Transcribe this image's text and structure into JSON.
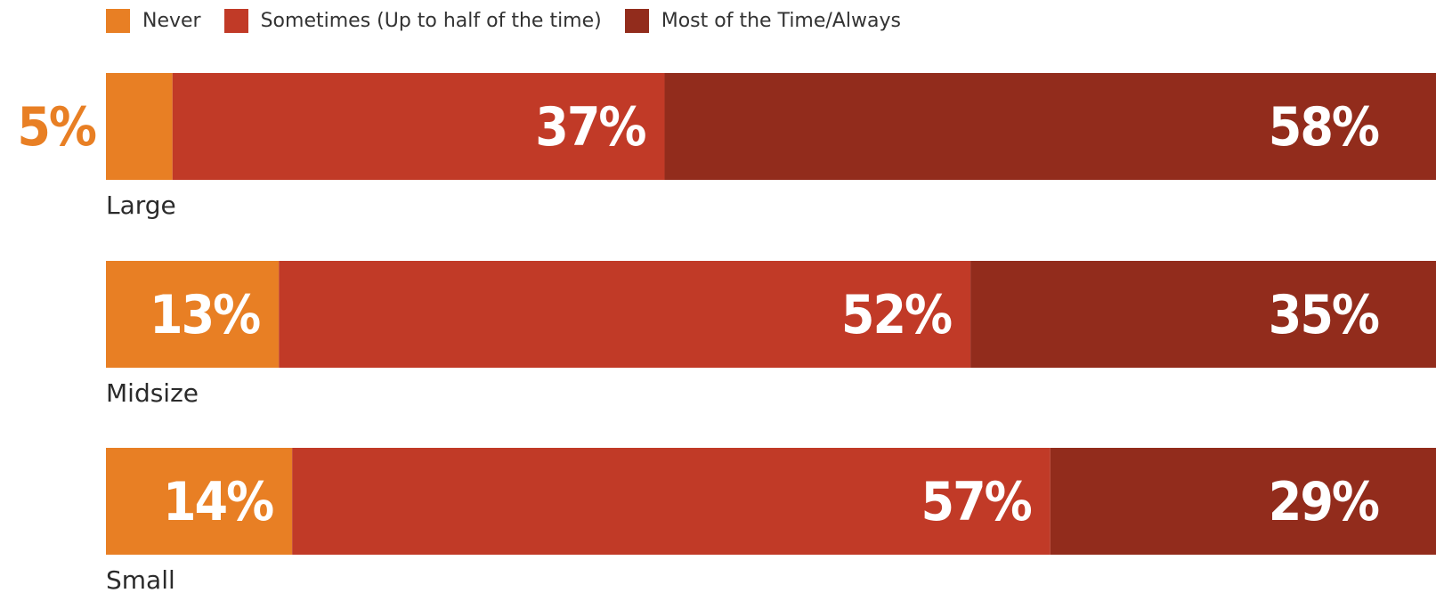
{
  "chart_data": {
    "type": "bar",
    "orientation": "horizontal",
    "stacked": true,
    "percent": true,
    "categories": [
      "Large",
      "Midsize",
      "Small"
    ],
    "series": [
      {
        "name": "Never",
        "values": [
          5,
          13,
          14
        ],
        "color": "#e87f24"
      },
      {
        "name": "Sometimes (Up to half of the time)",
        "values": [
          37,
          52,
          57
        ],
        "color": "#c13a27"
      },
      {
        "name": "Most of the Time/Always",
        "values": [
          58,
          35,
          29
        ],
        "color": "#922c1c"
      }
    ],
    "value_labels": [
      [
        "5%",
        "37%",
        "58%"
      ],
      [
        "13%",
        "52%",
        "35%"
      ],
      [
        "14%",
        "57%",
        "29%"
      ]
    ],
    "xlim": [
      0,
      100
    ],
    "legend": "top-left",
    "grid": false
  }
}
